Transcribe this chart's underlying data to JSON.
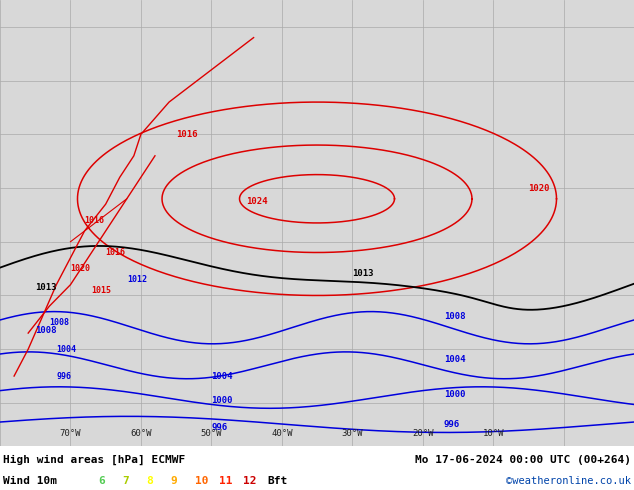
{
  "title_line1": "High wind areas [hPa] ECMWF",
  "title_line2": "Mo 17-06-2024 00:00 UTC (00+264)",
  "subtitle": "Wind 10m",
  "legend_values": [
    "6",
    "7",
    "8",
    "9",
    "10",
    "11",
    "12"
  ],
  "legend_colors": [
    "#55cc55",
    "#aacc00",
    "#ffff00",
    "#ffaa00",
    "#ff6600",
    "#ff2200",
    "#cc0000"
  ],
  "legend_suffix": "Bft",
  "credit": "©weatheronline.co.uk",
  "bg_color": "#d8d8d8",
  "land_color": "#b8e8a0",
  "grid_color": "#aaaaaa",
  "isobar_red_color": "#dd0000",
  "isobar_blue_color": "#0000dd",
  "isobar_black_color": "#000000",
  "fig_width": 6.34,
  "fig_height": 4.9,
  "dpi": 100,
  "bottom_bar_color": "#e8e8e8",
  "text_color": "#000000",
  "lon_min": -80,
  "lon_max": 10,
  "lat_min": -68,
  "lat_max": 15,
  "lon_ticks": [
    -70,
    -60,
    -50,
    -40,
    -30,
    -20,
    -10
  ],
  "lon_labels": [
    "70°W",
    "60°W",
    "50°W",
    "40°W",
    "30°W",
    "20°W",
    "10°W"
  ]
}
